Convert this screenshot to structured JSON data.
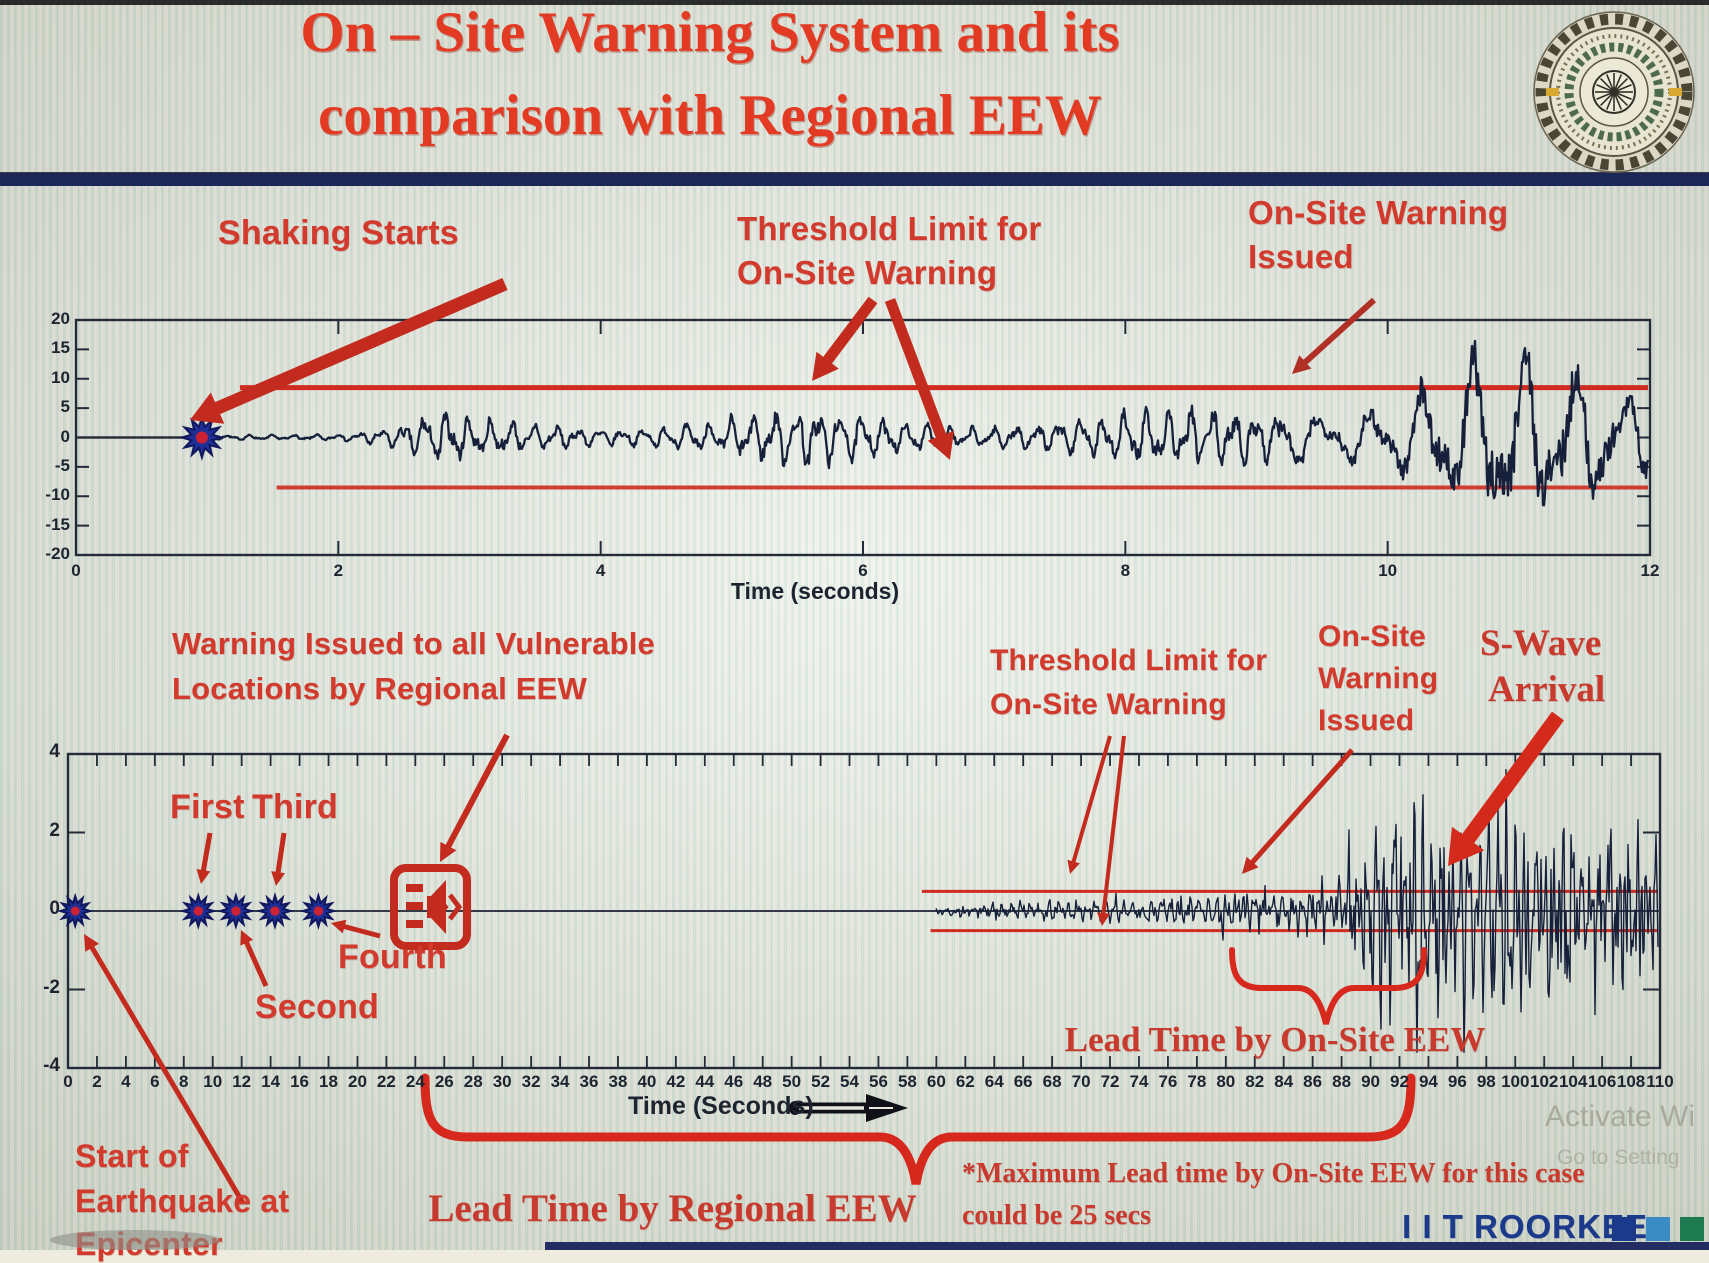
{
  "header": {
    "title_line1": "On – Site Warning System and its",
    "title_line2": "comparison with Regional EEW",
    "logo_name": "iit-roorkee-emblem"
  },
  "colors": {
    "title_red": "#e33a24",
    "annotation_red": "#d13a2c",
    "serif_red": "#c93a2e",
    "arrow_red": "#c22b1e",
    "navy_bar": "#1c2757",
    "waveform": "#16203a",
    "threshold_red": "#cf2b20",
    "star_blue": "#1e2f96",
    "star_center_red": "#cc2233",
    "brand_navy": "#1b3a8c",
    "brand_square_blue": "#3b8bc4",
    "brand_square_green": "#1e7a50",
    "axis_dark": "#232a38",
    "background_cream": "#edecdf"
  },
  "chart_data": [
    {
      "type": "line",
      "name": "on-site-seismogram",
      "xlabel": "Time (seconds)",
      "ylabel": "",
      "xlim": [
        0,
        12
      ],
      "ylim": [
        -20,
        20
      ],
      "x_ticks": [
        0,
        2,
        4,
        6,
        8,
        10,
        12
      ],
      "y_ticks": [
        20,
        15,
        10,
        5,
        0,
        -5,
        -10,
        -15,
        -20
      ],
      "grid": false,
      "threshold": {
        "upper": 8.5,
        "lower": -8.5
      },
      "shaking_start_time": 0.96,
      "warning_issued_time": 9.2,
      "annotations": {
        "shaking_starts": "Shaking Starts",
        "threshold_line1": "Threshold Limit for",
        "threshold_line2": "On-Site Warning",
        "warning_line1": "On-Site Warning",
        "warning_line2": "Issued"
      },
      "envelope_t_amp": [
        [
          0.96,
          0.4
        ],
        [
          1.25,
          0.9
        ],
        [
          2.1,
          1.1
        ],
        [
          2.45,
          2.2
        ],
        [
          2.7,
          4.8
        ],
        [
          3.1,
          3.4
        ],
        [
          4.2,
          3.2
        ],
        [
          4.8,
          4.2
        ],
        [
          5.6,
          5.2
        ],
        [
          6.3,
          4.0
        ],
        [
          7.0,
          4.3
        ],
        [
          7.8,
          4.6
        ],
        [
          8.6,
          5.2
        ],
        [
          9.0,
          6.5
        ],
        [
          9.3,
          9.5
        ],
        [
          9.8,
          11.0
        ],
        [
          10.3,
          13.5
        ],
        [
          10.8,
          16.5
        ],
        [
          11.3,
          15.0
        ],
        [
          11.7,
          16.0
        ],
        [
          12,
          13.0
        ]
      ]
    },
    {
      "type": "line",
      "name": "regional-comparison-seismogram",
      "xlabel": "Time (Seconds)",
      "ylabel": "",
      "xlim": [
        0,
        110
      ],
      "ylim": [
        -4,
        4
      ],
      "x_tick_start": 0,
      "x_tick_step": 2,
      "x_tick_end": 110,
      "y_ticks": [
        4,
        2,
        0,
        -2,
        -4
      ],
      "grid": false,
      "threshold": {
        "upper": 0.5,
        "lower": -0.5
      },
      "epicenter_time": 0.5,
      "p_detections": [
        {
          "label": "First",
          "time": 9
        },
        {
          "label": "Second",
          "time": 11.6
        },
        {
          "label": "Third",
          "time": 14.3
        },
        {
          "label": "Fourth",
          "time": 17.3
        }
      ],
      "regional_warning_time": 25,
      "signal_start_time": 60,
      "onsite_warning_time": 80,
      "s_wave_arrival_time": 93,
      "lead_time_regional_span": [
        24.5,
        92.5
      ],
      "lead_time_onsite_span": [
        80.5,
        93.5
      ],
      "annotations": {
        "regional_line1": "Warning Issued to all Vulnerable",
        "regional_line2": "Locations by Regional EEW",
        "first": "First",
        "second": "Second",
        "third": "Third",
        "fourth": "Fourth",
        "threshold_line1": "Threshold Limit for",
        "threshold_line2": "On-Site Warning",
        "onsite_line1": "On-Site",
        "onsite_line2": "Warning",
        "onsite_line3": "Issued",
        "swave_line1": "S-Wave",
        "swave_line2": "Arrival",
        "lead_onsite": "Lead Time by On-Site EEW",
        "lead_regional": "Lead Time by Regional EEW",
        "start_line1": "Start of",
        "start_line2": "Earthquake at",
        "start_line3": "Epicenter",
        "note_line1": "*Maximum Lead time by On-Site EEW for this case",
        "note_line2": "could be 25 secs"
      },
      "envelope_t_amp": [
        [
          60,
          0.1
        ],
        [
          63,
          0.18
        ],
        [
          68,
          0.25
        ],
        [
          74,
          0.28
        ],
        [
          78,
          0.38
        ],
        [
          80,
          0.5
        ],
        [
          83,
          0.52
        ],
        [
          86,
          0.6
        ],
        [
          88,
          0.8
        ],
        [
          89,
          1.6
        ],
        [
          90,
          2.6
        ],
        [
          91.5,
          3.1
        ],
        [
          93,
          2.9
        ],
        [
          95,
          2.7
        ],
        [
          97,
          2.4
        ],
        [
          99,
          2.6
        ],
        [
          101,
          2.2
        ],
        [
          103,
          2.4
        ],
        [
          105,
          2.0
        ],
        [
          107,
          2.1
        ],
        [
          109,
          1.9
        ],
        [
          110,
          1.8
        ]
      ]
    }
  ],
  "footer": {
    "brand": "I I T ROORKEE",
    "watermark_line1": "Activate Wi",
    "watermark_line2": "Go to Setting"
  }
}
